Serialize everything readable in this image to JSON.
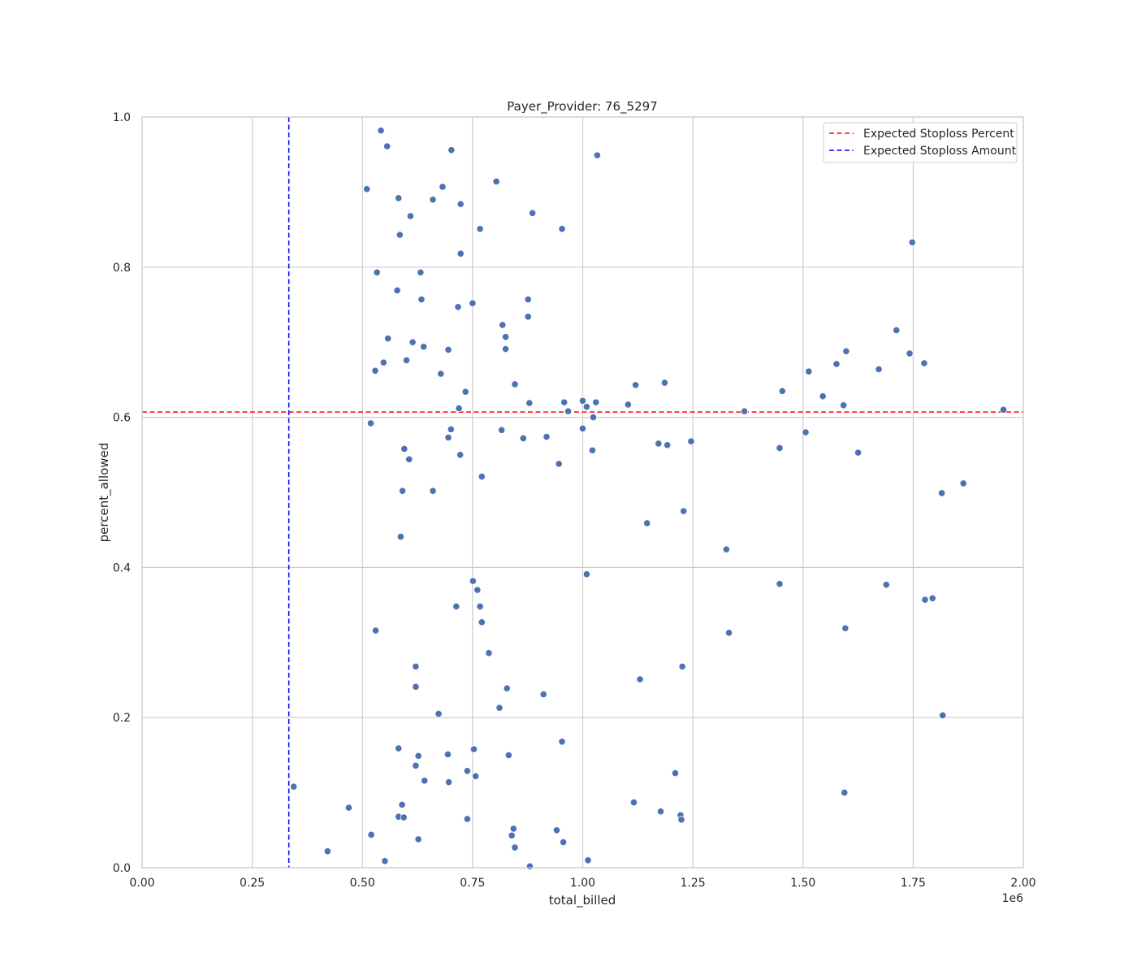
{
  "chart_data": {
    "type": "scatter",
    "title": "Payer_Provider: 76_5297",
    "xlabel": "total_billed",
    "ylabel": "percent_allowed",
    "x_offset_label": "1e6",
    "xlim": [
      0,
      2000000
    ],
    "ylim": [
      0,
      1.0
    ],
    "x_ticks": [
      0,
      250000,
      500000,
      750000,
      1000000,
      1250000,
      1500000,
      1750000,
      2000000
    ],
    "x_tick_labels": [
      "0.00",
      "0.25",
      "0.50",
      "0.75",
      "1.00",
      "1.25",
      "1.50",
      "1.75",
      "2.00"
    ],
    "y_ticks": [
      0,
      0.2,
      0.4,
      0.6,
      0.8,
      1.0
    ],
    "y_tick_labels": [
      "0.0",
      "0.2",
      "0.4",
      "0.6",
      "0.8",
      "1.0"
    ],
    "grid": true,
    "legend_position": "top-right",
    "point_color": "#4c72b0",
    "reference_lines": [
      {
        "name": "Expected Stoploss Percent",
        "orientation": "horizontal",
        "value": 0.607,
        "color": "#ff0000",
        "style": "dashed"
      },
      {
        "name": "Expected Stoploss Amount",
        "orientation": "vertical",
        "value": 333000,
        "color": "#0000ff",
        "style": "dashed"
      }
    ],
    "points": [
      [
        542000,
        0.982
      ],
      [
        556000,
        0.961
      ],
      [
        702000,
        0.956
      ],
      [
        1033000,
        0.949
      ],
      [
        510000,
        0.904
      ],
      [
        804000,
        0.914
      ],
      [
        682000,
        0.907
      ],
      [
        582000,
        0.892
      ],
      [
        660000,
        0.89
      ],
      [
        723000,
        0.884
      ],
      [
        886000,
        0.872
      ],
      [
        609000,
        0.868
      ],
      [
        767000,
        0.851
      ],
      [
        953000,
        0.851
      ],
      [
        585000,
        0.843
      ],
      [
        1748000,
        0.833
      ],
      [
        723000,
        0.818
      ],
      [
        533000,
        0.793
      ],
      [
        632000,
        0.793
      ],
      [
        579000,
        0.769
      ],
      [
        634000,
        0.757
      ],
      [
        876000,
        0.757
      ],
      [
        750000,
        0.752
      ],
      [
        717000,
        0.747
      ],
      [
        876000,
        0.734
      ],
      [
        818000,
        0.723
      ],
      [
        1712000,
        0.716
      ],
      [
        825000,
        0.707
      ],
      [
        558000,
        0.705
      ],
      [
        614000,
        0.7
      ],
      [
        639000,
        0.694
      ],
      [
        695000,
        0.69
      ],
      [
        825000,
        0.691
      ],
      [
        1598000,
        0.688
      ],
      [
        1742000,
        0.685
      ],
      [
        600000,
        0.676
      ],
      [
        548000,
        0.673
      ],
      [
        1576000,
        0.671
      ],
      [
        1775000,
        0.672
      ],
      [
        1672000,
        0.664
      ],
      [
        529000,
        0.662
      ],
      [
        1513000,
        0.661
      ],
      [
        678000,
        0.658
      ],
      [
        1186000,
        0.646
      ],
      [
        846000,
        0.644
      ],
      [
        1120000,
        0.643
      ],
      [
        1453000,
        0.635
      ],
      [
        734000,
        0.634
      ],
      [
        1545000,
        0.628
      ],
      [
        1000000,
        0.622
      ],
      [
        1030000,
        0.62
      ],
      [
        958000,
        0.62
      ],
      [
        879000,
        0.619
      ],
      [
        1103000,
        0.617
      ],
      [
        1592000,
        0.616
      ],
      [
        1009000,
        0.614
      ],
      [
        719000,
        0.612
      ],
      [
        967000,
        0.608
      ],
      [
        1367000,
        0.608
      ],
      [
        1955000,
        0.61
      ],
      [
        1024000,
        0.6
      ],
      [
        519000,
        0.592
      ],
      [
        1000000,
        0.585
      ],
      [
        701000,
        0.584
      ],
      [
        816000,
        0.583
      ],
      [
        1506000,
        0.58
      ],
      [
        918000,
        0.574
      ],
      [
        695000,
        0.573
      ],
      [
        865000,
        0.572
      ],
      [
        1246000,
        0.568
      ],
      [
        1172000,
        0.565
      ],
      [
        1192000,
        0.563
      ],
      [
        1447000,
        0.559
      ],
      [
        595000,
        0.558
      ],
      [
        1022000,
        0.556
      ],
      [
        1625000,
        0.553
      ],
      [
        722000,
        0.55
      ],
      [
        606000,
        0.544
      ],
      [
        946000,
        0.538
      ],
      [
        771000,
        0.521
      ],
      [
        1864000,
        0.512
      ],
      [
        591000,
        0.502
      ],
      [
        660000,
        0.502
      ],
      [
        1815000,
        0.499
      ],
      [
        1229000,
        0.475
      ],
      [
        1146000,
        0.459
      ],
      [
        587000,
        0.441
      ],
      [
        1326000,
        0.424
      ],
      [
        1009000,
        0.391
      ],
      [
        751000,
        0.382
      ],
      [
        1447000,
        0.378
      ],
      [
        1689000,
        0.377
      ],
      [
        761000,
        0.37
      ],
      [
        1794000,
        0.359
      ],
      [
        1777000,
        0.357
      ],
      [
        713000,
        0.348
      ],
      [
        767000,
        0.348
      ],
      [
        771000,
        0.327
      ],
      [
        1596000,
        0.319
      ],
      [
        530000,
        0.316
      ],
      [
        1332000,
        0.313
      ],
      [
        787000,
        0.286
      ],
      [
        621000,
        0.268
      ],
      [
        1226000,
        0.268
      ],
      [
        1130000,
        0.251
      ],
      [
        621000,
        0.241
      ],
      [
        828000,
        0.239
      ],
      [
        911000,
        0.231
      ],
      [
        811000,
        0.213
      ],
      [
        673000,
        0.205
      ],
      [
        1817000,
        0.203
      ],
      [
        953000,
        0.168
      ],
      [
        582000,
        0.159
      ],
      [
        753000,
        0.158
      ],
      [
        694000,
        0.151
      ],
      [
        832000,
        0.15
      ],
      [
        627000,
        0.149
      ],
      [
        621000,
        0.136
      ],
      [
        738000,
        0.129
      ],
      [
        1210000,
        0.126
      ],
      [
        757000,
        0.122
      ],
      [
        641000,
        0.116
      ],
      [
        696000,
        0.114
      ],
      [
        344000,
        0.108
      ],
      [
        1594000,
        0.1
      ],
      [
        1116000,
        0.087
      ],
      [
        590000,
        0.084
      ],
      [
        469000,
        0.08
      ],
      [
        1177000,
        0.075
      ],
      [
        1222000,
        0.07
      ],
      [
        582000,
        0.068
      ],
      [
        594000,
        0.067
      ],
      [
        738000,
        0.065
      ],
      [
        1224000,
        0.064
      ],
      [
        843000,
        0.052
      ],
      [
        941000,
        0.05
      ],
      [
        520000,
        0.044
      ],
      [
        839000,
        0.043
      ],
      [
        627000,
        0.038
      ],
      [
        956000,
        0.034
      ],
      [
        846000,
        0.027
      ],
      [
        421000,
        0.022
      ],
      [
        551000,
        0.009
      ],
      [
        1012000,
        0.01
      ],
      [
        880000,
        0.002
      ]
    ]
  }
}
